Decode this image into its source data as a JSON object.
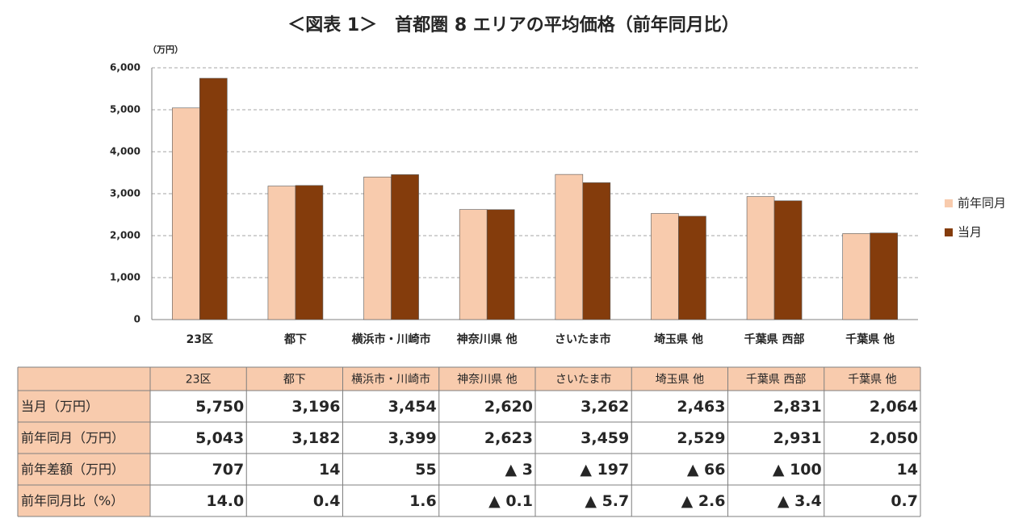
{
  "chart_data": {
    "type": "bar",
    "title": "＜図表 1＞　首都圏 8 エリアの平均価格（前年同月比）",
    "y_unit": "（万円）",
    "categories": [
      "23区",
      "都下",
      "横浜市・川崎市",
      "神奈川県 他",
      "さいたま市",
      "埼玉県 他",
      "千葉県 西部",
      "千葉県 他"
    ],
    "series": [
      {
        "name": "前年同月",
        "color": "#f8cbad",
        "values": [
          5043,
          3182,
          3399,
          2623,
          3459,
          2529,
          2931,
          2050
        ]
      },
      {
        "name": "当月",
        "color": "#843c0c",
        "values": [
          5750,
          3196,
          3454,
          2620,
          3262,
          2463,
          2831,
          2064
        ]
      }
    ],
    "ylim": [
      0,
      6000
    ],
    "yticks": [
      0,
      {
        "value": 1000,
        "label": "1,000"
      },
      {
        "value": 2000,
        "label": "2,000"
      },
      {
        "value": 3000,
        "label": "3,000"
      },
      {
        "value": 4000,
        "label": "4,000"
      },
      {
        "value": 5000,
        "label": "5,000"
      },
      {
        "value": 6000,
        "label": "6,000"
      }
    ],
    "grid": true,
    "legend": "right"
  },
  "table": {
    "rows": [
      {
        "label": "当月（万円）",
        "cells": [
          "5,750",
          "3,196",
          "3,454",
          "2,620",
          "3,262",
          "2,463",
          "2,831",
          "2,064"
        ]
      },
      {
        "label": "前年同月（万円）",
        "cells": [
          "5,043",
          "3,182",
          "3,399",
          "2,623",
          "3,459",
          "2,529",
          "2,931",
          "2,050"
        ]
      },
      {
        "label": "前年差額（万円）",
        "cells": [
          "707",
          "14",
          "55",
          "▲ 3",
          "▲ 197",
          "▲ 66",
          "▲ 100",
          "14"
        ]
      },
      {
        "label": "前年同月比（%）",
        "cells": [
          "14.0",
          "0.4",
          "1.6",
          "▲ 0.1",
          "▲ 5.7",
          "▲ 2.6",
          "▲ 3.4",
          "0.7"
        ]
      }
    ]
  }
}
